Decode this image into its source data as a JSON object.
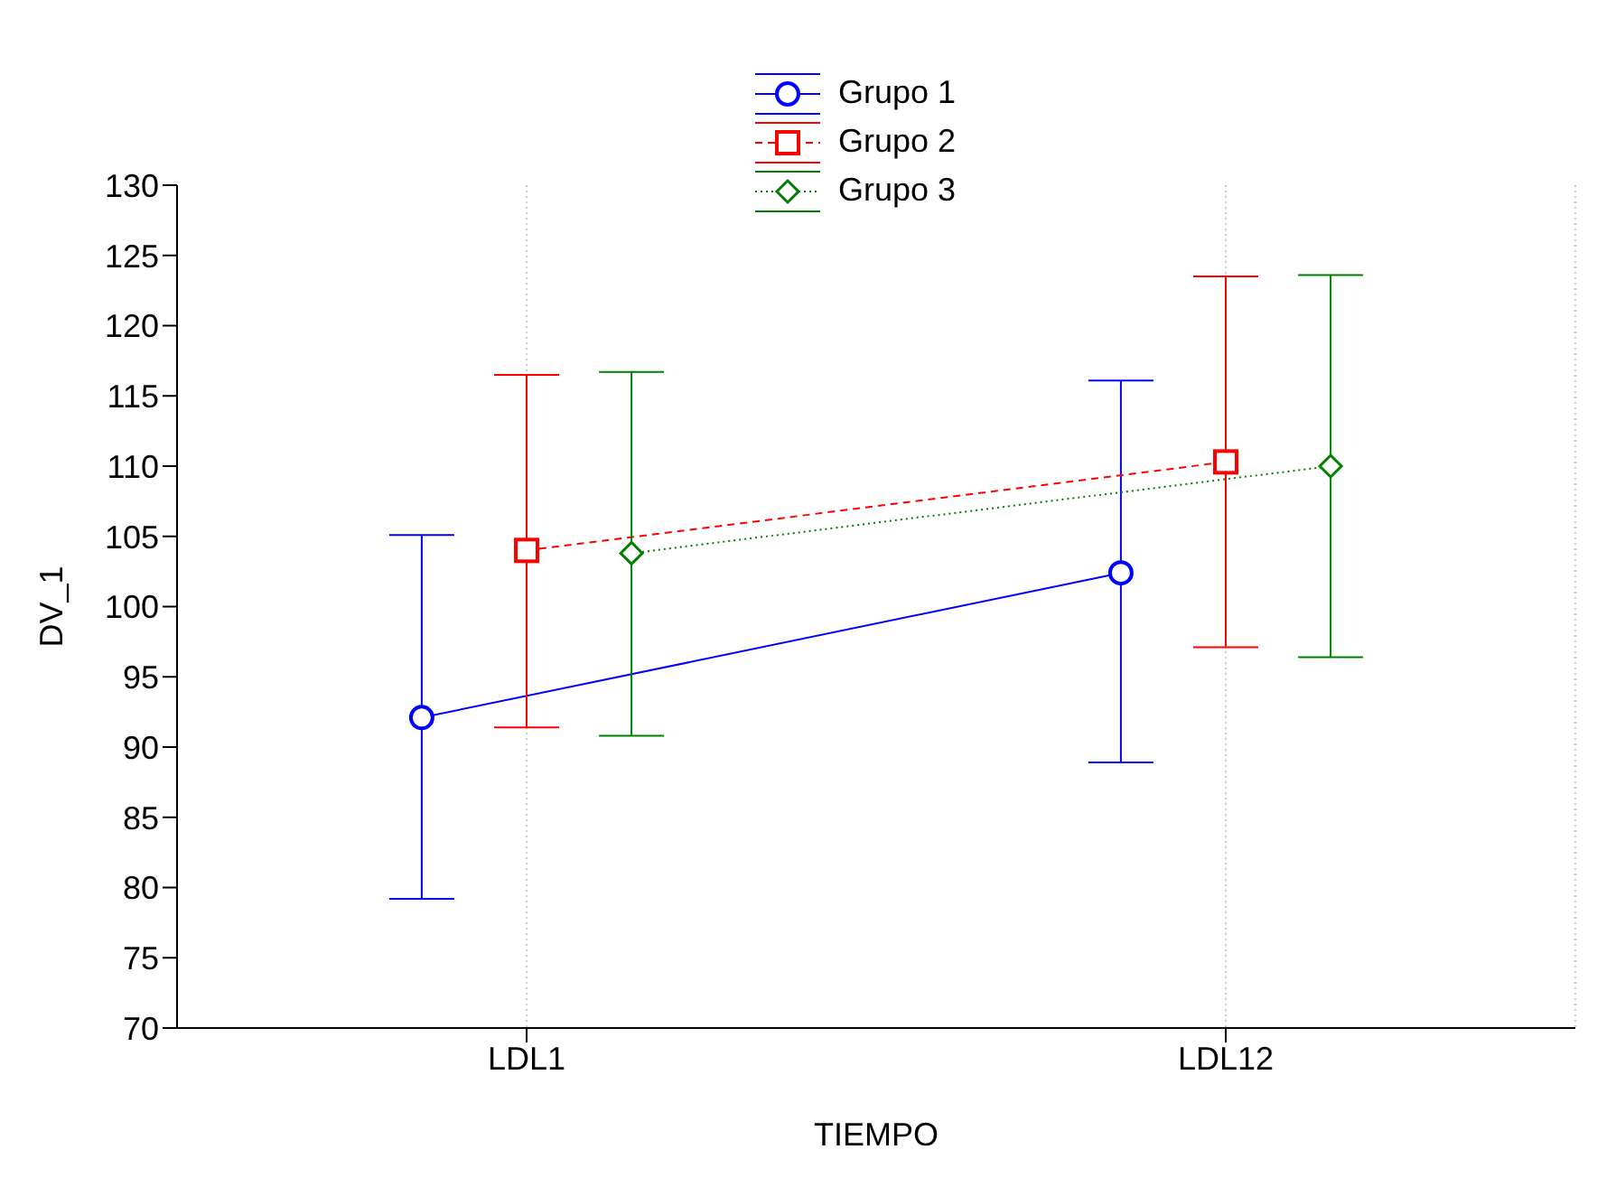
{
  "chart_data": {
    "type": "line",
    "xlabel": "TIEMPO",
    "ylabel": "DV_1",
    "categories": [
      "LDL1",
      "LDL12"
    ],
    "ylim": [
      70,
      130
    ],
    "yticks": [
      70,
      75,
      80,
      85,
      90,
      95,
      100,
      105,
      110,
      115,
      120,
      125,
      130
    ],
    "grid": "x",
    "legend": "top",
    "series": [
      {
        "name": "Grupo 1",
        "color": "#0000ff",
        "marker": "circle",
        "line_style": "solid",
        "values": [
          92.1,
          102.4
        ],
        "errors": [
          [
            79.2,
            105.1
          ],
          [
            88.9,
            116.1
          ]
        ]
      },
      {
        "name": "Grupo 2",
        "color": "#ff0000",
        "marker": "square",
        "line_style": "dashed",
        "values": [
          104.0,
          110.3
        ],
        "errors": [
          [
            91.4,
            116.5
          ],
          [
            97.1,
            123.5
          ]
        ]
      },
      {
        "name": "Grupo 3",
        "color": "#008000",
        "marker": "diamond",
        "line_style": "dotted",
        "values": [
          103.8,
          110.0
        ],
        "errors": [
          [
            90.8,
            116.7
          ],
          [
            96.4,
            123.6
          ]
        ]
      }
    ]
  }
}
